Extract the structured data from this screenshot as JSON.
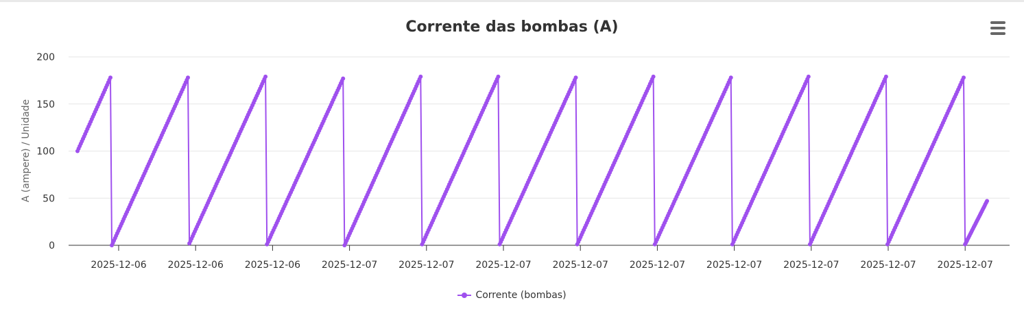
{
  "chart_data": {
    "type": "line",
    "title": "Corrente das bombas (A)",
    "ylabel": "A (ampere) / Unidade",
    "ylim": [
      0,
      200
    ],
    "yticks": [
      0,
      50,
      100,
      150,
      200
    ],
    "xticks": [
      "2025-12-06",
      "2025-12-06",
      "2025-12-06",
      "2025-12-07",
      "2025-12-07",
      "2025-12-07",
      "2025-12-07",
      "2025-12-07",
      "2025-12-07",
      "2025-12-07",
      "2025-12-07",
      "2025-12-07"
    ],
    "grid": true,
    "legend_position": "bottom-center",
    "series": [
      {
        "name": "Corrente (bombas)",
        "color": "#9f50ee",
        "cycles": [
          {
            "start": 100,
            "peak": 178
          },
          {
            "start": 0,
            "peak": 178
          },
          {
            "start": 2,
            "peak": 179
          },
          {
            "start": 1,
            "peak": 177
          },
          {
            "start": 0,
            "peak": 179
          },
          {
            "start": 1,
            "peak": 179
          },
          {
            "start": 1,
            "peak": 178
          },
          {
            "start": 1,
            "peak": 179
          },
          {
            "start": 1,
            "peak": 178
          },
          {
            "start": 1,
            "peak": 179
          },
          {
            "start": 1,
            "peak": 179
          },
          {
            "start": 1,
            "peak": 178
          },
          {
            "start": 1,
            "peak": 47
          }
        ]
      }
    ]
  },
  "menu_icon": "hamburger-menu-icon"
}
